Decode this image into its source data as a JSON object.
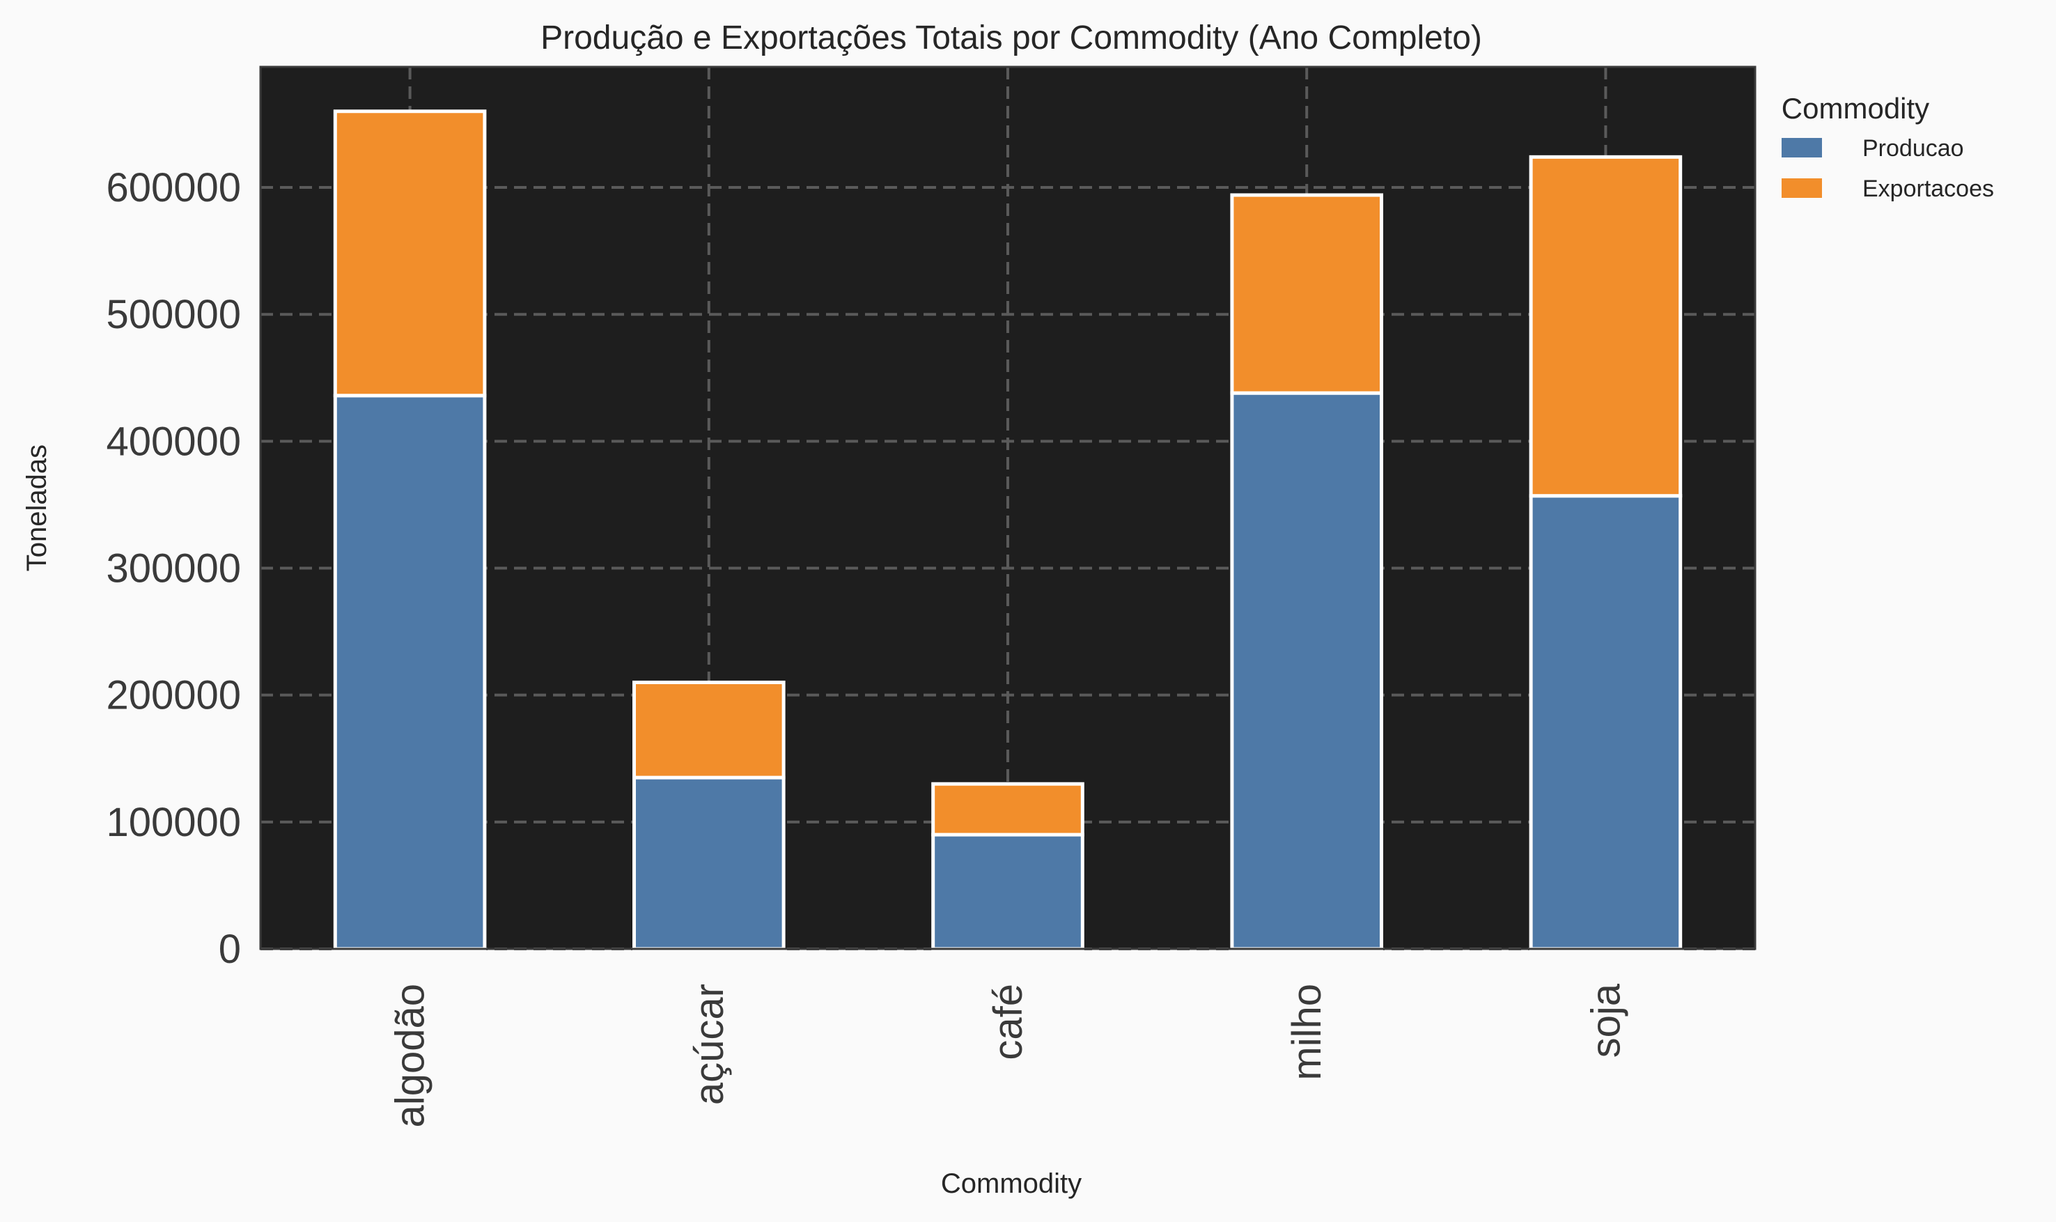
{
  "chart_data": {
    "type": "bar",
    "stacked": true,
    "title": "Produção e Exportações Totais por Commodity (Ano Completo)",
    "xlabel": "Commodity",
    "ylabel": "Toneladas",
    "categories": [
      "algodão",
      "açúcar",
      "café",
      "milho",
      "soja"
    ],
    "series": [
      {
        "name": "Producao",
        "values": [
          436000,
          135000,
          90000,
          438000,
          357000
        ],
        "color": "#4e79a7"
      },
      {
        "name": "Exportacoes",
        "values": [
          224000,
          75000,
          40000,
          156000,
          267000
        ],
        "color": "#f28e2b"
      }
    ],
    "ylim": [
      0,
      695000
    ],
    "yticks": [
      0,
      100000,
      200000,
      300000,
      400000,
      500000,
      600000
    ],
    "grid": true,
    "legend": {
      "title": "Commodity",
      "placement": "outside-top-right"
    },
    "plot_background": "#1e1e1e"
  }
}
